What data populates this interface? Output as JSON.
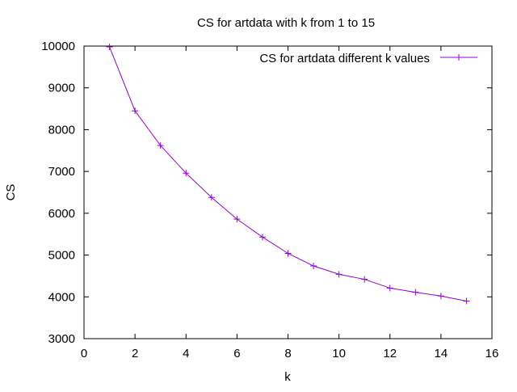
{
  "chart_data": {
    "type": "line",
    "title": "CS for artdata with k from 1 to 15",
    "xlabel": "k",
    "ylabel": "CS",
    "xlim": [
      0,
      16
    ],
    "ylim": [
      3000,
      10000
    ],
    "xticks": [
      0,
      2,
      4,
      6,
      8,
      10,
      12,
      14,
      16
    ],
    "yticks": [
      3000,
      4000,
      5000,
      6000,
      7000,
      8000,
      9000,
      10000
    ],
    "grid": false,
    "legend_position": "top-right",
    "series": [
      {
        "name": "CS for artdata different k values",
        "color": "#9400d3",
        "marker": "plus",
        "x": [
          1,
          2,
          3,
          4,
          5,
          6,
          7,
          8,
          9,
          10,
          11,
          12,
          13,
          14,
          15
        ],
        "y": [
          9980,
          8450,
          7620,
          6960,
          6380,
          5860,
          5430,
          5040,
          4740,
          4540,
          4420,
          4210,
          4110,
          4020,
          3900
        ]
      }
    ]
  }
}
